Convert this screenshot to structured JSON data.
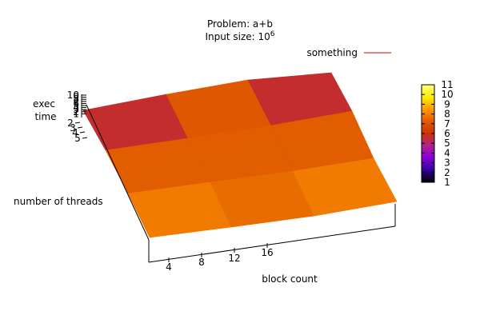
{
  "chart_data": {
    "type": "surface3d",
    "title_line1": "Problem: a+b",
    "title_line2_base": "Input size: 10",
    "title_line2_exp": "6",
    "xlabel": "block count",
    "ylabel": "number of threads",
    "zlabel_line1": "exec",
    "zlabel_line2": "time",
    "x_ticks": [
      "4",
      "8",
      "12",
      "16"
    ],
    "y_ticks": [
      "2",
      "3",
      "4",
      "5"
    ],
    "z_ticks": [
      "10",
      "9",
      "8",
      "7",
      "6",
      "5",
      "4",
      "3",
      "2",
      "1"
    ],
    "legend": {
      "label": "something",
      "color": "#cc0000",
      "placement": "top-right"
    },
    "colorbar": {
      "ticks": [
        "11",
        "10",
        "9",
        "8",
        "7",
        "6",
        "5",
        "4",
        "3",
        "2",
        "1"
      ],
      "min": 1,
      "max": 11,
      "stops": [
        "#000000",
        "#330099",
        "#8800dd",
        "#b0208e",
        "#cc3300",
        "#e05a00",
        "#ff9900",
        "#ffee00",
        "#ffff80"
      ]
    },
    "grid": [
      [
        5.6,
        7.2,
        5.6
      ],
      [
        7.3,
        7.3,
        7.3
      ],
      [
        7.9,
        7.6,
        7.9
      ]
    ]
  }
}
